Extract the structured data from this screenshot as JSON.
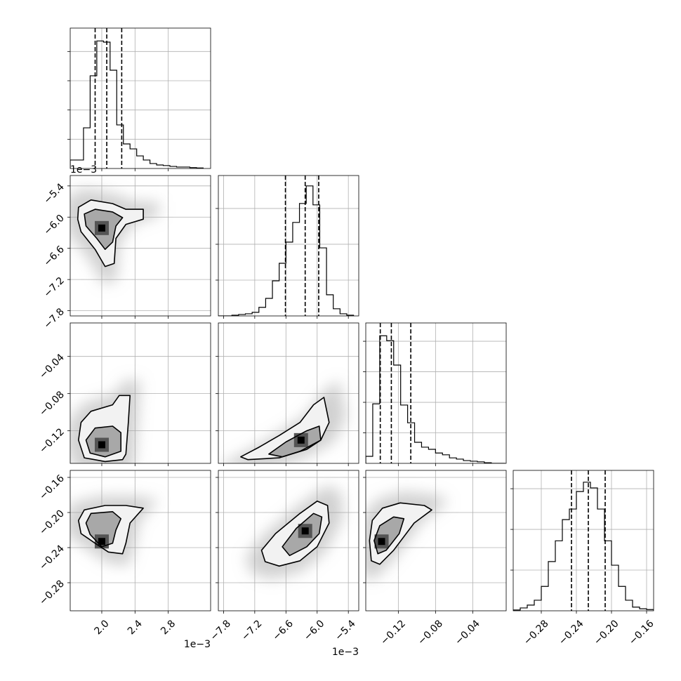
{
  "chart_data": {
    "type": "corner",
    "grid": true,
    "color": "#000000",
    "parameters": [
      {
        "lim": [
          1.62,
          3.31
        ],
        "ticks": [
          {
            "value": 2,
            "label": "2.0"
          },
          {
            "value": 2.4,
            "label": "2.4"
          },
          {
            "value": 2.8,
            "label": "2.8"
          }
        ],
        "offset_label": "1e−3",
        "quantiles": [
          1.92,
          2.06,
          2.24
        ],
        "hist": {
          "bins": [
            1.62,
            1.7,
            1.78,
            1.86,
            1.94,
            2.02,
            2.1,
            2.18,
            2.26,
            2.34,
            2.42,
            2.5,
            2.58,
            2.66,
            2.74,
            2.82,
            2.9,
            2.98,
            3.06,
            3.14,
            3.22
          ],
          "counts": [
            0.29,
            0.29,
            1.39,
            3.17,
            4.36,
            4.32,
            3.36,
            1.49,
            0.84,
            0.67,
            0.43,
            0.29,
            0.17,
            0.12,
            0.1,
            0.07,
            0.05,
            0.05,
            0.03,
            0.02
          ],
          "ylim": [
            0,
            4.8
          ],
          "yticks": [
            1,
            2,
            3,
            4
          ]
        }
      },
      {
        "lim": [
          -7.9,
          -5.2
        ],
        "ticks": [
          {
            "value": -7.8,
            "label": "−7.8"
          },
          {
            "value": -7.2,
            "label": "−7.2"
          },
          {
            "value": -6.6,
            "label": "−6.6"
          },
          {
            "value": -6.0,
            "label": "−6.0"
          },
          {
            "value": -5.4,
            "label": "−5.4"
          }
        ],
        "offset_label": "1e−3",
        "quantiles": [
          -6.61,
          -6.23,
          -5.97
        ],
        "hist": {
          "bins": [
            -7.9,
            -7.77,
            -7.64,
            -7.51,
            -7.38,
            -7.25,
            -7.12,
            -6.99,
            -6.86,
            -6.73,
            -6.6,
            -6.47,
            -6.34,
            -6.21,
            -6.08,
            -5.95,
            -5.82,
            -5.69,
            -5.56,
            -5.43,
            -5.3
          ],
          "counts": [
            0,
            0,
            0.02,
            0.04,
            0.06,
            0.1,
            0.24,
            0.49,
            0.98,
            1.47,
            2.06,
            2.61,
            3.14,
            3.63,
            3.1,
            1.9,
            0.59,
            0.2,
            0.06,
            0.02
          ],
          "ylim": [
            0,
            3.92
          ],
          "yticks": [
            1,
            2,
            3
          ]
        }
      },
      {
        "lim": [
          -0.155,
          -0.004
        ],
        "ticks": [
          {
            "value": -0.12,
            "label": "−0.12"
          },
          {
            "value": -0.08,
            "label": "−0.08"
          },
          {
            "value": -0.04,
            "label": "−0.04"
          }
        ],
        "quantiles": [
          -0.1394,
          -0.1275,
          -0.1066
        ],
        "hist": {
          "bins": [
            -0.155,
            -0.1475,
            -0.14,
            -0.1325,
            -0.125,
            -0.1175,
            -0.11,
            -0.1025,
            -0.095,
            -0.0875,
            -0.08,
            -0.0725,
            -0.065,
            -0.0575,
            -0.05,
            -0.0425,
            -0.035,
            -0.0275,
            -0.02,
            -0.0125,
            -0.005
          ],
          "counts": [
            0.23,
            1.95,
            4.18,
            4.02,
            3.22,
            1.91,
            1.33,
            0.69,
            0.53,
            0.46,
            0.34,
            0.28,
            0.18,
            0.14,
            0.09,
            0.07,
            0.05,
            0.02,
            0,
            0
          ],
          "ylim": [
            0,
            4.6
          ],
          "yticks": [
            1,
            2,
            3,
            4
          ]
        }
      },
      {
        "lim": [
          -0.312,
          -0.152
        ],
        "ticks": [
          {
            "value": -0.28,
            "label": "−0.28"
          },
          {
            "value": -0.24,
            "label": "−0.24"
          },
          {
            "value": -0.2,
            "label": "−0.20"
          },
          {
            "value": -0.16,
            "label": "−0.16"
          }
        ],
        "quantiles": [
          -0.2456,
          -0.2264,
          -0.2072
        ],
        "hist": {
          "bins": [
            -0.312,
            -0.304,
            -0.296,
            -0.288,
            -0.28,
            -0.272,
            -0.264,
            -0.256,
            -0.248,
            -0.24,
            -0.232,
            -0.224,
            -0.216,
            -0.208,
            -0.2,
            -0.192,
            -0.184,
            -0.176,
            -0.168,
            -0.16,
            -0.152
          ],
          "counts": [
            0.02,
            0.07,
            0.14,
            0.26,
            0.6,
            1.21,
            1.72,
            2.24,
            2.5,
            2.93,
            3.16,
            3.02,
            2.5,
            1.72,
            1.12,
            0.6,
            0.26,
            0.09,
            0.05,
            0.03
          ],
          "ylim": [
            0,
            3.45
          ],
          "yticks": [
            1,
            2,
            3
          ]
        }
      }
    ],
    "pairs": [
      [
        {
          "contours": [
            [
              [
                1.72,
                -5.81
              ],
              [
                1.87,
                -5.67
              ],
              [
                2.13,
                -5.74
              ],
              [
                2.29,
                -5.85
              ],
              [
                2.5,
                -5.85
              ],
              [
                2.5,
                -6.04
              ],
              [
                2.29,
                -6.14
              ],
              [
                2.17,
                -6.41
              ],
              [
                2.15,
                -6.89
              ],
              [
                2.04,
                -6.95
              ],
              [
                1.92,
                -6.62
              ],
              [
                1.75,
                -6.28
              ],
              [
                1.71,
                -6.04
              ]
            ],
            [
              [
                1.79,
                -5.94
              ],
              [
                1.92,
                -5.85
              ],
              [
                2.13,
                -5.9
              ],
              [
                2.25,
                -6.01
              ],
              [
                2.17,
                -6.17
              ],
              [
                2.13,
                -6.48
              ],
              [
                2.04,
                -6.62
              ],
              [
                1.94,
                -6.41
              ],
              [
                1.81,
                -6.17
              ]
            ]
          ],
          "peak": [
            2.0,
            -6.21
          ]
        }
      ],
      [
        {
          "contours": [
            [
              [
                1.72,
                -0.13
              ],
              [
                1.75,
                -0.111
              ],
              [
                1.87,
                -0.099
              ],
              [
                2.13,
                -0.092
              ],
              [
                2.21,
                -0.082
              ],
              [
                2.34,
                -0.082
              ],
              [
                2.32,
                -0.111
              ],
              [
                2.29,
                -0.145
              ],
              [
                2.25,
                -0.151
              ],
              [
                2.04,
                -0.153
              ],
              [
                1.79,
                -0.149
              ]
            ],
            [
              [
                1.81,
                -0.13
              ],
              [
                1.92,
                -0.117
              ],
              [
                2.13,
                -0.115
              ],
              [
                2.23,
                -0.122
              ],
              [
                2.23,
                -0.142
              ],
              [
                2.04,
                -0.148
              ],
              [
                1.86,
                -0.144
              ]
            ]
          ],
          "peak": [
            2.0,
            -0.135
          ]
        },
        {
          "contours": [
            [
              [
                -7.47,
                -0.148
              ],
              [
                -7.13,
                -0.138
              ],
              [
                -6.73,
                -0.125
              ],
              [
                -6.33,
                -0.111
              ],
              [
                -6.07,
                -0.092
              ],
              [
                -5.87,
                -0.084
              ],
              [
                -5.77,
                -0.111
              ],
              [
                -5.93,
                -0.13
              ],
              [
                -6.33,
                -0.142
              ],
              [
                -6.73,
                -0.149
              ],
              [
                -7.33,
                -0.151
              ]
            ],
            [
              [
                -6.93,
                -0.145
              ],
              [
                -6.6,
                -0.132
              ],
              [
                -6.2,
                -0.12
              ],
              [
                -5.96,
                -0.115
              ],
              [
                -5.93,
                -0.13
              ],
              [
                -6.2,
                -0.14
              ],
              [
                -6.67,
                -0.148
              ]
            ]
          ],
          "peak": [
            -6.31,
            -0.13
          ]
        }
      ],
      [
        {
          "contours": [
            [
              [
                1.72,
                -0.209
              ],
              [
                1.79,
                -0.197
              ],
              [
                2.04,
                -0.192
              ],
              [
                2.29,
                -0.192
              ],
              [
                2.5,
                -0.195
              ],
              [
                2.34,
                -0.212
              ],
              [
                2.29,
                -0.235
              ],
              [
                2.25,
                -0.247
              ],
              [
                2.08,
                -0.245
              ],
              [
                1.92,
                -0.235
              ],
              [
                1.75,
                -0.224
              ]
            ],
            [
              [
                1.81,
                -0.212
              ],
              [
                1.87,
                -0.201
              ],
              [
                2.13,
                -0.199
              ],
              [
                2.23,
                -0.207
              ],
              [
                2.17,
                -0.22
              ],
              [
                2.13,
                -0.235
              ],
              [
                2.0,
                -0.239
              ],
              [
                1.86,
                -0.225
              ]
            ]
          ],
          "peak": [
            2.0,
            -0.233
          ]
        },
        {
          "contours": [
            [
              [
                -7.07,
                -0.243
              ],
              [
                -6.8,
                -0.224
              ],
              [
                -6.33,
                -0.201
              ],
              [
                -6.0,
                -0.187
              ],
              [
                -5.8,
                -0.192
              ],
              [
                -5.77,
                -0.212
              ],
              [
                -6.0,
                -0.239
              ],
              [
                -6.33,
                -0.255
              ],
              [
                -6.73,
                -0.261
              ],
              [
                -7.0,
                -0.256
              ]
            ],
            [
              [
                -6.67,
                -0.239
              ],
              [
                -6.4,
                -0.218
              ],
              [
                -6.07,
                -0.201
              ],
              [
                -5.91,
                -0.205
              ],
              [
                -5.96,
                -0.224
              ],
              [
                -6.2,
                -0.239
              ],
              [
                -6.53,
                -0.249
              ]
            ]
          ],
          "peak": [
            -6.23,
            -0.221
          ]
        },
        {
          "contours": [
            [
              [
                -0.151,
                -0.232
              ],
              [
                -0.148,
                -0.209
              ],
              [
                -0.137,
                -0.195
              ],
              [
                -0.118,
                -0.189
              ],
              [
                -0.092,
                -0.192
              ],
              [
                -0.084,
                -0.197
              ],
              [
                -0.103,
                -0.212
              ],
              [
                -0.125,
                -0.243
              ],
              [
                -0.14,
                -0.259
              ],
              [
                -0.149,
                -0.255
              ]
            ],
            [
              [
                -0.146,
                -0.232
              ],
              [
                -0.14,
                -0.215
              ],
              [
                -0.125,
                -0.205
              ],
              [
                -0.114,
                -0.207
              ],
              [
                -0.119,
                -0.224
              ],
              [
                -0.133,
                -0.243
              ],
              [
                -0.142,
                -0.247
              ]
            ]
          ],
          "peak": [
            -0.138,
            -0.233
          ]
        }
      ]
    ]
  }
}
